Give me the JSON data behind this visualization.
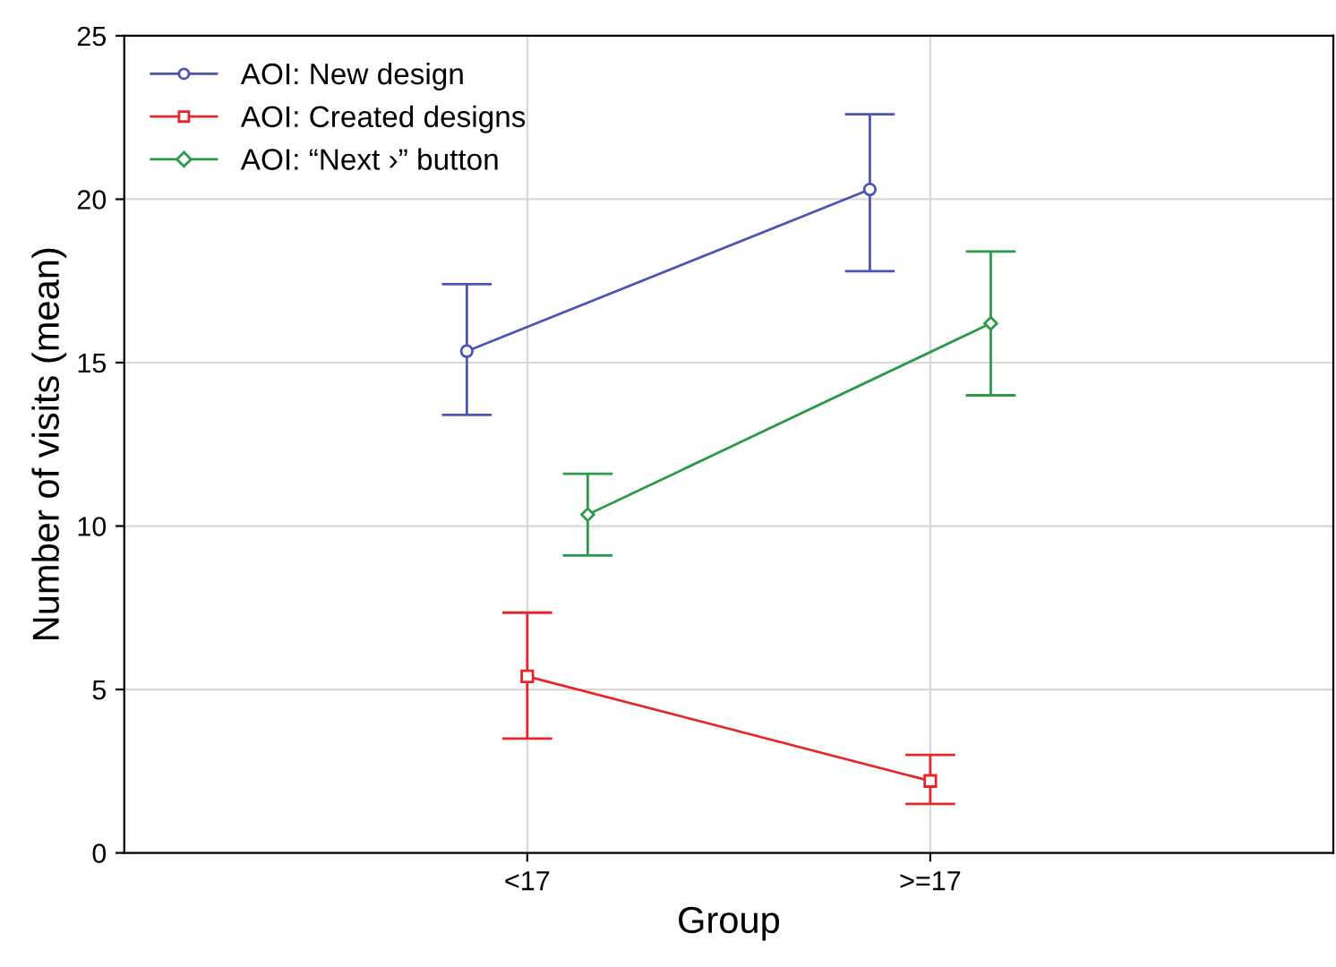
{
  "chart_data": {
    "type": "line",
    "xlabel": "Group",
    "ylabel": "Number of visits (mean)",
    "categories": [
      "<17",
      ">=17"
    ],
    "series": [
      {
        "name": "AOI: New design",
        "color": "#4a55b5",
        "marker": "circle",
        "values": [
          15.35,
          20.3
        ],
        "errors": [
          [
            13.4,
            17.4
          ],
          [
            17.8,
            22.6
          ]
        ]
      },
      {
        "name": "AOI: Created designs",
        "color": "#e8262a",
        "marker": "square",
        "values": [
          5.4,
          2.2
        ],
        "errors": [
          [
            3.5,
            7.35
          ],
          [
            1.5,
            3.0
          ]
        ]
      },
      {
        "name": "AOI: “Next ›” button",
        "color": "#2a9a48",
        "marker": "diamond",
        "values": [
          10.35,
          16.2
        ],
        "errors": [
          [
            9.1,
            11.6
          ],
          [
            14.0,
            18.4
          ]
        ]
      }
    ],
    "ylim": [
      0,
      25
    ],
    "yticks": [
      0,
      5,
      10,
      15,
      20,
      25
    ],
    "grid": true,
    "legend": "top left"
  }
}
